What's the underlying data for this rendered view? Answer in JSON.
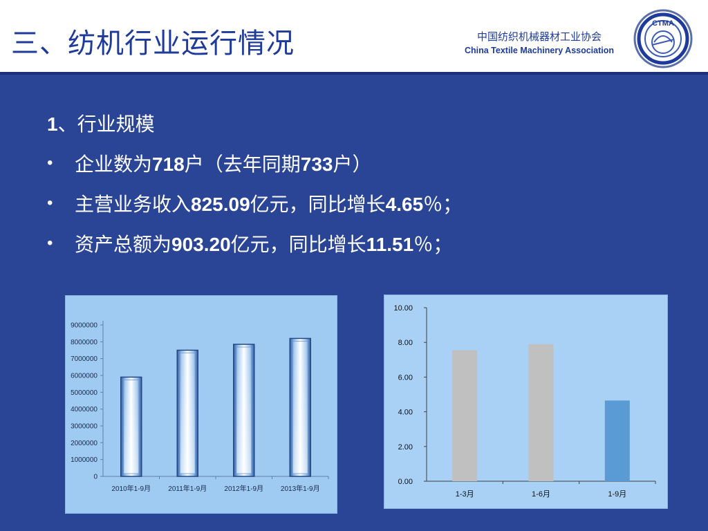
{
  "header": {
    "title": "三、纺机行业运行情况",
    "association_cn": "中国纺织机械器材工业协会",
    "association_en": "China Textile Machinery Association",
    "logo_text": "CTMA",
    "background": "#ffffff",
    "title_color": "#1e3a9a"
  },
  "content": {
    "heading_num": "1",
    "heading_text": "、行业规模",
    "bullet_symbol": "•",
    "bullets": [
      {
        "p1": "企业数为",
        "n1": "718",
        "p2": "户（去年同期",
        "n2": "733",
        "p3": "户）"
      },
      {
        "p1": "主营业务收入",
        "n1": "825.09",
        "p2": "亿元，同比增长",
        "n2": "4.65",
        "p3": "％；"
      },
      {
        "p1": "资产总额为",
        "n1": "903.20",
        "p2": "亿元，同比增长",
        "n2": "11.51",
        "p3": "％；"
      }
    ]
  },
  "colors": {
    "slide_bg": "#2a4596",
    "text": "#ffffff",
    "bar_gray": "#c0c0c0",
    "bar_blue": "#5b9bd5"
  },
  "chart_data": [
    {
      "type": "bar",
      "categories": [
        "2010年1-9月",
        "2011年1-9月",
        "2012年1-9月",
        "2013年1-9月"
      ],
      "values": [
        5900000,
        7500000,
        7850000,
        8200000
      ],
      "y_ticks": [
        "0",
        "1000000",
        "2000000",
        "3000000",
        "4000000",
        "5000000",
        "6000000",
        "7000000",
        "8000000",
        "9000000"
      ],
      "ylim": [
        0,
        9000000
      ],
      "title": "",
      "xlabel": "",
      "ylabel": "",
      "grid": false,
      "legend": "none"
    },
    {
      "type": "bar",
      "categories": [
        "1-3月",
        "1-6月",
        "1-9月"
      ],
      "values": [
        7.55,
        7.9,
        4.65
      ],
      "colors": [
        "#c0c0c0",
        "#c0c0c0",
        "#5b9bd5"
      ],
      "y_ticks": [
        "0.00",
        "2.00",
        "4.00",
        "6.00",
        "8.00",
        "10.00"
      ],
      "ylim": [
        0,
        10
      ],
      "title": "",
      "xlabel": "",
      "ylabel": "",
      "grid": false,
      "legend": "none"
    }
  ]
}
